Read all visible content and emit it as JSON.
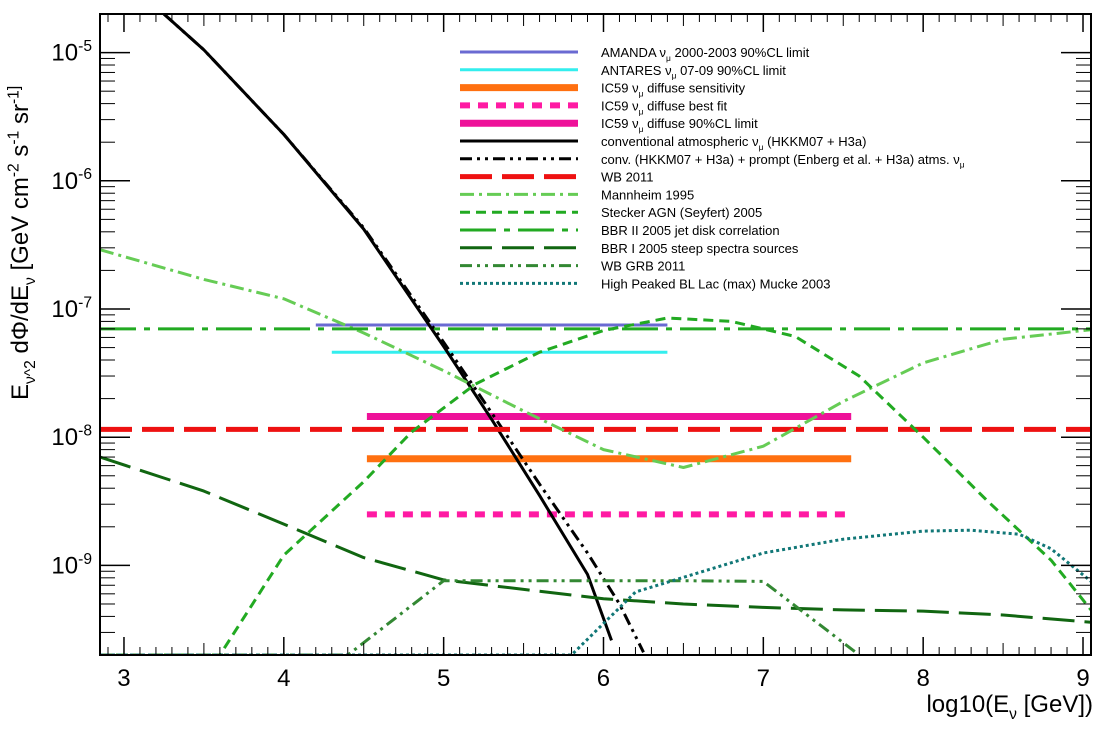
{
  "chart_data": {
    "type": "line",
    "x_scale": "linear",
    "y_scale": "log",
    "xlim": [
      2.85,
      9.05
    ],
    "ylim": [
      2e-10,
      2e-05
    ],
    "xlabel": "log10(E_ν [GeV])",
    "ylabel": "E_ν^2 dΦ/dE_ν [GeV cm^-2 s^-1 sr^-1]",
    "x_ticks": [
      "3",
      "4",
      "5",
      "6",
      "7",
      "8",
      "9"
    ],
    "x_tick_values": [
      3,
      4,
      5,
      6,
      7,
      8,
      9
    ],
    "y_ticks": [
      "10^-9",
      "10^-8",
      "10^-7",
      "10^-6",
      "10^-5"
    ],
    "y_tick_exponents": [
      -9,
      -8,
      -7,
      -6,
      -5
    ],
    "legend_position": "top-right",
    "grid": false,
    "series": [
      {
        "name": "AMANDA  ν_μ 2000-2003 90%CL limit",
        "color": "#6a6ad2",
        "style": "solid",
        "width": 3,
        "x": [
          4.2,
          6.4
        ],
        "y": [
          7.5e-08,
          7.5e-08
        ]
      },
      {
        "name": "ANTARES  ν_μ 07-09 90%CL limit",
        "color": "#33eeee",
        "style": "solid",
        "width": 3,
        "x": [
          4.3,
          6.4
        ],
        "y": [
          4.6e-08,
          4.6e-08
        ]
      },
      {
        "name": "IC59 ν_μ diffuse sensitivity",
        "color": "#ff7010",
        "style": "solid",
        "width": 7,
        "x": [
          4.52,
          7.55
        ],
        "y": [
          6.8e-09,
          6.8e-09
        ]
      },
      {
        "name": "IC59 ν_μ diffuse best fit",
        "color": "#ff1aa3",
        "style": "dotted",
        "width": 6,
        "x": [
          4.52,
          7.55
        ],
        "y": [
          2.5e-09,
          2.5e-09
        ]
      },
      {
        "name": "IC59 ν_μ diffuse 90%CL limit",
        "color": "#ee1199",
        "style": "solid",
        "width": 7,
        "x": [
          4.52,
          7.55
        ],
        "y": [
          1.45e-08,
          1.45e-08
        ]
      },
      {
        "name": "conventional atmospheric ν_μ (HKKM07 + H3a)",
        "color": "#000000",
        "style": "solid",
        "width": 3,
        "x": [
          3.25,
          3.5,
          4.0,
          4.5,
          5.0,
          5.3,
          5.6,
          5.9,
          6.05
        ],
        "y": [
          2e-05,
          1.05e-05,
          2.3e-06,
          4.2e-07,
          5.1e-08,
          1.38e-08,
          3.5e-09,
          8.5e-10,
          2.6e-10
        ]
      },
      {
        "name": "conv. (HKKM07 + H3a) + prompt (Enberg et al. + H3a) atms. ν_μ",
        "color": "#000000",
        "style": "dashdotdot",
        "width": 3,
        "x": [
          3.25,
          3.5,
          4.0,
          4.5,
          5.0,
          5.3,
          5.6,
          5.9,
          6.1,
          6.25
        ],
        "y": [
          2e-05,
          1.05e-05,
          2.3e-06,
          4.3e-07,
          5.5e-08,
          1.55e-08,
          4.3e-09,
          1.25e-09,
          5e-10,
          2.1e-10
        ]
      },
      {
        "name": "WB 2011",
        "color": "#ee1111",
        "style": "longdash",
        "width": 5,
        "x": [
          2.85,
          9.05
        ],
        "y": [
          1.15e-08,
          1.15e-08
        ]
      },
      {
        "name": "Mannheim 1995",
        "color": "#66cc55",
        "style": "dashdot",
        "width": 3,
        "x": [
          2.85,
          3.5,
          4.0,
          4.5,
          5.0,
          5.5,
          6.0,
          6.5,
          7.0,
          7.5,
          8.0,
          8.5,
          9.05
        ],
        "y": [
          2.9e-07,
          1.7e-07,
          1.2e-07,
          6.5e-08,
          3.3e-08,
          1.6e-08,
          8e-09,
          5.8e-09,
          8.5e-09,
          1.9e-08,
          3.8e-08,
          5.8e-08,
          6.9e-08
        ]
      },
      {
        "name": "Stecker AGN (Seyfert) 2005",
        "color": "#22aa22",
        "style": "dashed",
        "width": 3,
        "x": [
          2.85,
          3.6,
          4.0,
          4.5,
          4.8,
          5.2,
          5.6,
          6.0,
          6.4,
          6.8,
          7.2,
          7.6,
          8.0,
          8.4,
          8.8,
          9.05
        ],
        "y": [
          2e-10,
          2e-10,
          1.2e-09,
          4.5e-09,
          1.1e-08,
          2.6e-08,
          4.6e-08,
          6.8e-08,
          8.5e-08,
          8e-08,
          6.1e-08,
          3e-08,
          1e-08,
          3.2e-09,
          1.1e-09,
          4.5e-10
        ]
      },
      {
        "name": "BBR II 2005 jet disk correlation",
        "color": "#22aa22",
        "style": "dashdot-long",
        "width": 3,
        "x": [
          2.85,
          9.05
        ],
        "y": [
          7e-08,
          7e-08
        ]
      },
      {
        "name": "BBR I 2005 steep spectra sources",
        "color": "#116611",
        "style": "longdash",
        "width": 3,
        "x": [
          2.85,
          3.5,
          4.0,
          4.5,
          5.0,
          5.5,
          6.0,
          6.5,
          7.0,
          7.5,
          8.0,
          8.5,
          9.05
        ],
        "y": [
          7e-09,
          3.8e-09,
          2.1e-09,
          1.15e-09,
          7.7e-10,
          6.5e-10,
          5.5e-10,
          5e-10,
          4.7e-10,
          4.5e-10,
          4.4e-10,
          4.1e-10,
          3.6e-10
        ]
      },
      {
        "name": "WB GRB 2011",
        "color": "#338833",
        "style": "dashdotdot",
        "width": 3,
        "x": [
          2.85,
          4.4,
          5.0,
          5.5,
          6.0,
          6.5,
          7.0,
          7.6
        ],
        "y": [
          2e-10,
          2e-10,
          7.6e-10,
          7.6e-10,
          7.6e-10,
          7.6e-10,
          7.5e-10,
          2e-10
        ]
      },
      {
        "name": "High Peaked BL Lac (max) Mucke 2003",
        "color": "#117777",
        "style": "dotted",
        "width": 3,
        "x": [
          2.85,
          5.8,
          6.2,
          6.6,
          7.0,
          7.5,
          8.0,
          8.3,
          8.6,
          8.8,
          9.05
        ],
        "y": [
          2e-10,
          2e-10,
          6.2e-10,
          8.8e-10,
          1.25e-09,
          1.6e-09,
          1.85e-09,
          1.88e-09,
          1.75e-09,
          1.35e-09,
          7.5e-10
        ]
      }
    ]
  }
}
